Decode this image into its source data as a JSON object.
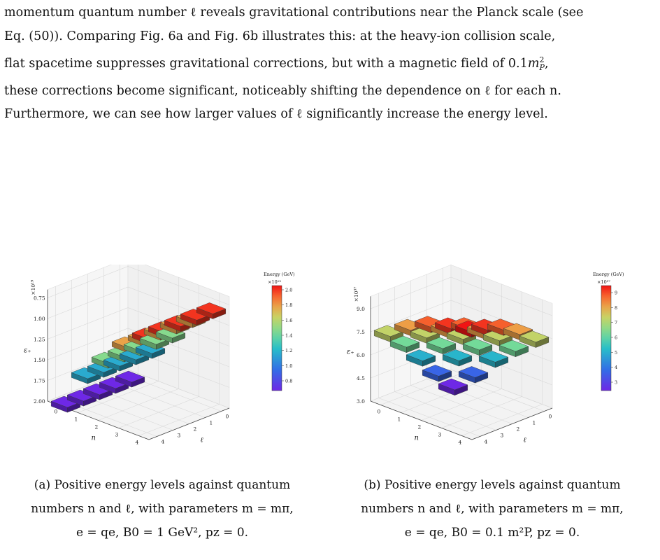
{
  "body_text": {
    "line1": "momentum quantum number ℓ reveals gravitational contributions near the Planck scale (see",
    "line2": "Eq. (50)). Comparing Fig. 6a and Fig. 6b illustrates this: at the heavy-ion collision scale,",
    "line3a": "flat spacetime suppresses gravitational corrections, but with a magnetic field of 0.1",
    "line3b": "m",
    "line3c": ",",
    "line4": "these corrections become significant, noticeably shifting the dependence on ℓ for each n.",
    "line5": "Furthermore, we can see how larger values of ℓ significantly increase the energy level."
  },
  "figures": [
    {
      "id": "a",
      "caption": {
        "line1": "(a) Positive energy levels against quantum",
        "line2": "numbers n and ℓ, with parameters m = mπ,",
        "line3": "e = qe, B0 = 1 GeV², pz = 0."
      },
      "colorbar": {
        "title": "Energy (GeV)",
        "multiplier": "×10¹⁹",
        "ticks": [
          "2.0",
          "1.8",
          "1.6",
          "1.4",
          "1.2",
          "1.0",
          "0.8"
        ]
      },
      "zaxis": {
        "label": "ε₊",
        "multiplier": "×10¹⁹",
        "ticks": [
          "2.00",
          "1.75",
          "1.50",
          "1.25",
          "1.00",
          "0.75"
        ]
      },
      "xaxis": {
        "label": "n",
        "ticks": [
          "0",
          "1",
          "2",
          "3",
          "4"
        ]
      },
      "yaxis": {
        "label": "ℓ",
        "ticks": [
          "4",
          "3",
          "2",
          "1",
          "0"
        ]
      }
    },
    {
      "id": "b",
      "caption": {
        "line1": "(b) Positive energy levels against quantum",
        "line2": "numbers n and ℓ, with parameters m = mπ,",
        "line3": "e = qe, B0 = 0.1 m²P, pz = 0."
      },
      "colorbar": {
        "title": "Energy (GeV)",
        "multiplier": "×10³⁷",
        "ticks": [
          "9",
          "8",
          "7",
          "6",
          "5",
          "4",
          "3"
        ]
      },
      "zaxis": {
        "label": "ε₊",
        "multiplier": "×10³⁷",
        "ticks": [
          "9.0",
          "7.5",
          "6.0",
          "4.5",
          "3.0"
        ]
      },
      "xaxis": {
        "label": "n",
        "ticks": [
          "0",
          "1",
          "2",
          "3",
          "4"
        ]
      },
      "yaxis": {
        "label": "ℓ",
        "ticks": [
          "4",
          "3",
          "2",
          "1",
          "0"
        ]
      }
    }
  ],
  "chart_data": [
    {
      "type": "bar3d",
      "title": "",
      "xlabel": "n",
      "ylabel": "ℓ",
      "zlabel": "ε₊",
      "zlim": [
        0.75,
        2.0
      ],
      "z_scale": "×10^19",
      "series": [
        {
          "n": 0,
          "values": [
            0.75,
            0.75,
            0.75,
            0.75,
            0.75
          ]
        },
        {
          "n": 1,
          "values": [
            1.19,
            1.19,
            1.19,
            1.19,
            1.19
          ]
        },
        {
          "n": 2,
          "values": [
            1.47,
            1.47,
            1.47,
            1.47,
            1.47
          ]
        },
        {
          "n": 3,
          "values": [
            1.75,
            1.75,
            1.75,
            1.75,
            1.75
          ]
        },
        {
          "n": 4,
          "values": [
            1.95,
            1.95,
            1.95,
            1.95,
            1.95
          ]
        }
      ],
      "colormap": "rainbow",
      "crange": [
        0.75,
        2.0
      ],
      "grid": true
    },
    {
      "type": "bar3d",
      "title": "",
      "xlabel": "n",
      "ylabel": "ℓ",
      "zlabel": "ε₊",
      "zlim": [
        3.0,
        9.5
      ],
      "z_scale": "×10^37",
      "series": [
        {
          "n": 0,
          "values": [
            2.5,
            3.8,
            5.2,
            6.5,
            7.6
          ]
        },
        {
          "n": 1,
          "values": [
            3.8,
            5.3,
            6.5,
            7.6,
            8.5
          ]
        },
        {
          "n": 2,
          "values": [
            5.3,
            6.5,
            7.6,
            8.5,
            9.2
          ]
        },
        {
          "n": 3,
          "values": [
            6.5,
            7.6,
            8.5,
            9.2,
            9.6
          ]
        },
        {
          "n": 4,
          "values": [
            7.6,
            8.5,
            9.2,
            9.6,
            9.9
          ]
        }
      ],
      "colormap": "rainbow",
      "crange": [
        2.5,
        9.9
      ],
      "grid": true
    }
  ]
}
